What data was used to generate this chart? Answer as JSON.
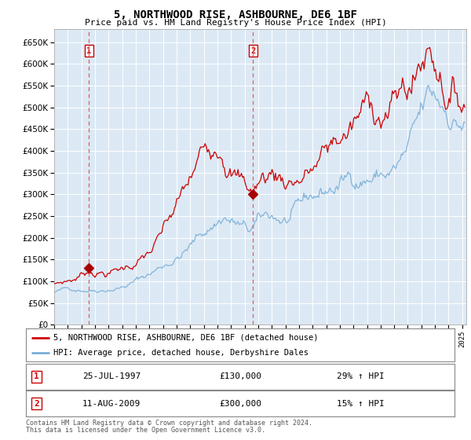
{
  "title": "5, NORTHWOOD RISE, ASHBOURNE, DE6 1BF",
  "subtitle": "Price paid vs. HM Land Registry's House Price Index (HPI)",
  "ylim": [
    0,
    680000
  ],
  "yticks": [
    0,
    50000,
    100000,
    150000,
    200000,
    250000,
    300000,
    350000,
    400000,
    450000,
    500000,
    550000,
    600000,
    650000
  ],
  "xlim_start": 1995.0,
  "xlim_end": 2025.3,
  "plot_bg_color": "#dce9f5",
  "grid_color": "#c8d8e8",
  "line1_color": "#cc0000",
  "line2_color": "#7aaed6",
  "marker1_color": "#aa0000",
  "vline_color": "#e06060",
  "annotation_box_color": "#cc0000",
  "sale1_x": 1997.56,
  "sale1_y": 130000,
  "sale1_label": "1",
  "sale1_date": "25-JUL-1997",
  "sale1_price": "£130,000",
  "sale1_hpi": "29% ↑ HPI",
  "sale2_x": 2009.62,
  "sale2_y": 300000,
  "sale2_label": "2",
  "sale2_date": "11-AUG-2009",
  "sale2_price": "£300,000",
  "sale2_hpi": "15% ↑ HPI",
  "legend_line1": "5, NORTHWOOD RISE, ASHBOURNE, DE6 1BF (detached house)",
  "legend_line2": "HPI: Average price, detached house, Derbyshire Dales",
  "footer1": "Contains HM Land Registry data © Crown copyright and database right 2024.",
  "footer2": "This data is licensed under the Open Government Licence v3.0."
}
